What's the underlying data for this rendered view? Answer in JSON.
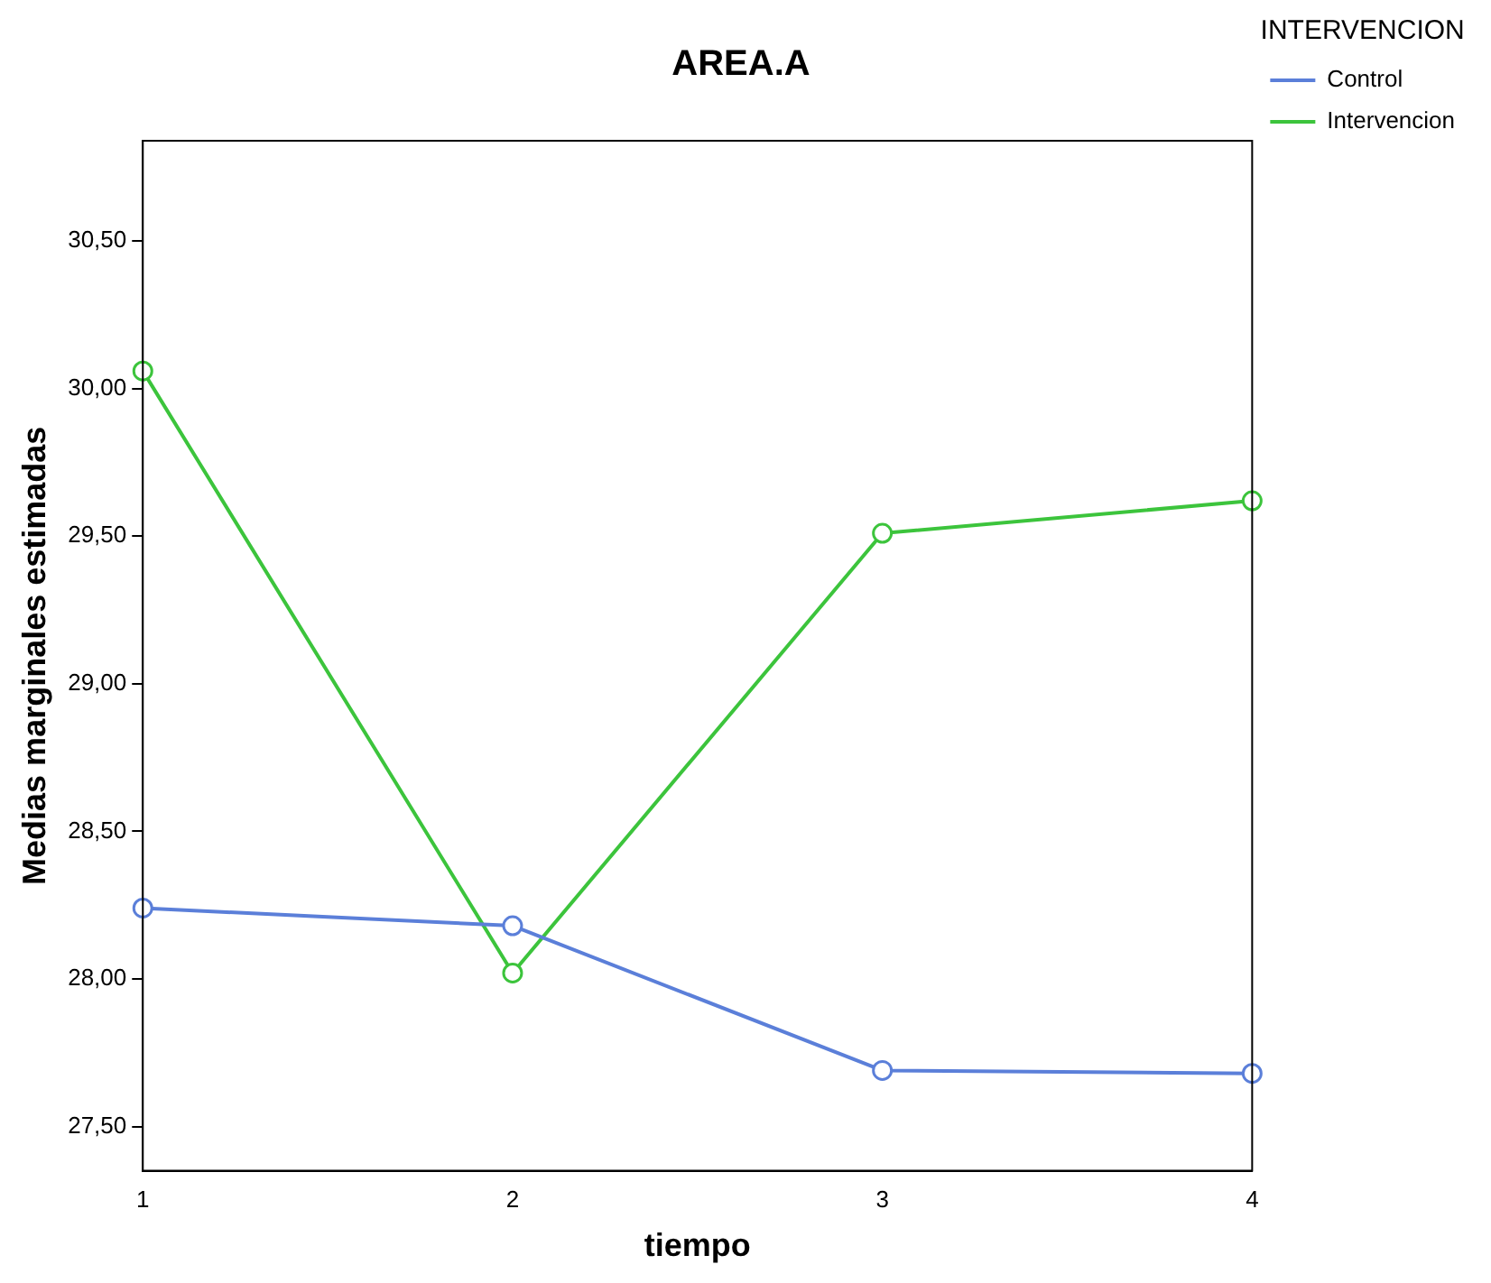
{
  "chart_data": {
    "type": "line",
    "title": "AREA.A",
    "xlabel": "tiempo",
    "ylabel": "Medias marginales estimadas",
    "legend_title": "INTERVENCION",
    "categories": [
      "1",
      "2",
      "3",
      "4"
    ],
    "series": [
      {
        "name": "Control",
        "color": "#5b7fd9",
        "values": [
          28.24,
          28.18,
          27.69,
          27.68
        ]
      },
      {
        "name": "Intervencion",
        "color": "#3cc43c",
        "values": [
          30.06,
          28.02,
          29.51,
          29.62
        ]
      }
    ],
    "ylim": [
      27.35,
      30.84
    ],
    "yticks": [
      {
        "value": 27.5,
        "label": "27,50"
      },
      {
        "value": 28,
        "label": "28,00"
      },
      {
        "value": 28.5,
        "label": "28,50"
      },
      {
        "value": 29,
        "label": "29,00"
      },
      {
        "value": 29.5,
        "label": "29,50"
      },
      {
        "value": 30,
        "label": "30,00"
      },
      {
        "value": 30.5,
        "label": "30,50"
      }
    ],
    "grid": false,
    "legend": "top right",
    "marker": "circle",
    "line_style": "solid"
  }
}
